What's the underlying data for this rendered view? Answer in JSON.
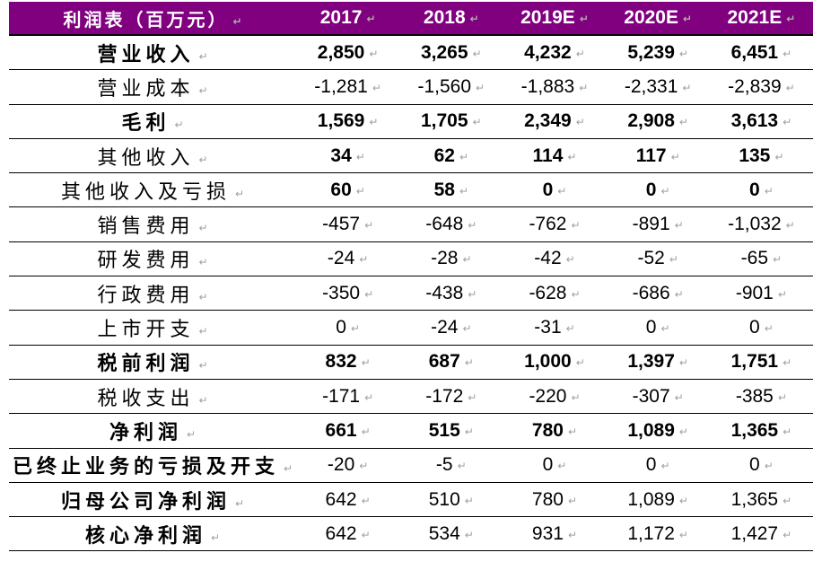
{
  "table": {
    "title": "利润表（百万元）",
    "columns": [
      "2017",
      "2018",
      "2019E",
      "2020E",
      "2021E"
    ],
    "rows": [
      {
        "label": "营业收入",
        "label_bold": true,
        "values_bold": true,
        "values": [
          "2,850",
          "3,265",
          "4,232",
          "5,239",
          "6,451"
        ]
      },
      {
        "label": "营业成本",
        "label_bold": false,
        "values_bold": false,
        "values": [
          "-1,281",
          "-1,560",
          "-1,883",
          "-2,331",
          "-2,839"
        ]
      },
      {
        "label": "毛利",
        "label_bold": true,
        "values_bold": true,
        "values": [
          "1,569",
          "1,705",
          "2,349",
          "2,908",
          "3,613"
        ]
      },
      {
        "label": "其他收入",
        "label_bold": false,
        "values_bold": true,
        "values": [
          "34",
          "62",
          "114",
          "117",
          "135"
        ]
      },
      {
        "label": "其他收入及亏损",
        "label_bold": false,
        "values_bold": true,
        "values": [
          "60",
          "58",
          "0",
          "0",
          "0"
        ]
      },
      {
        "label": "销售费用",
        "label_bold": false,
        "values_bold": false,
        "values": [
          "-457",
          "-648",
          "-762",
          "-891",
          "-1,032"
        ]
      },
      {
        "label": "研发费用",
        "label_bold": false,
        "values_bold": false,
        "values": [
          "-24",
          "-28",
          "-42",
          "-52",
          "-65"
        ]
      },
      {
        "label": "行政费用",
        "label_bold": false,
        "values_bold": false,
        "values": [
          "-350",
          "-438",
          "-628",
          "-686",
          "-901"
        ]
      },
      {
        "label": "上市开支",
        "label_bold": false,
        "values_bold": false,
        "values": [
          "0",
          "-24",
          "-31",
          "0",
          "0"
        ]
      },
      {
        "label": "税前利润",
        "label_bold": true,
        "values_bold": true,
        "values": [
          "832",
          "687",
          "1,000",
          "1,397",
          "1,751"
        ]
      },
      {
        "label": "税收支出",
        "label_bold": false,
        "values_bold": false,
        "values": [
          "-171",
          "-172",
          "-220",
          "-307",
          "-385"
        ]
      },
      {
        "label": "净利润",
        "label_bold": true,
        "values_bold": true,
        "values": [
          "661",
          "515",
          "780",
          "1,089",
          "1,365"
        ]
      },
      {
        "label": "已终止业务的亏损及开支",
        "label_bold": true,
        "values_bold": false,
        "values": [
          "-20",
          "-5",
          "0",
          "0",
          "0"
        ]
      },
      {
        "label": "归母公司净利润",
        "label_bold": true,
        "values_bold": false,
        "values": [
          "642",
          "510",
          "780",
          "1,089",
          "1,365"
        ]
      },
      {
        "label": "核心净利润",
        "label_bold": true,
        "values_bold": false,
        "values": [
          "642",
          "534",
          "931",
          "1,172",
          "1,427"
        ]
      }
    ],
    "pilcrow_glyph": "↵",
    "colors": {
      "header_bg": "#800080",
      "header_text": "#ffffff",
      "body_text": "#000000",
      "border": "#000000",
      "pilcrow": "#9ba49b"
    }
  }
}
